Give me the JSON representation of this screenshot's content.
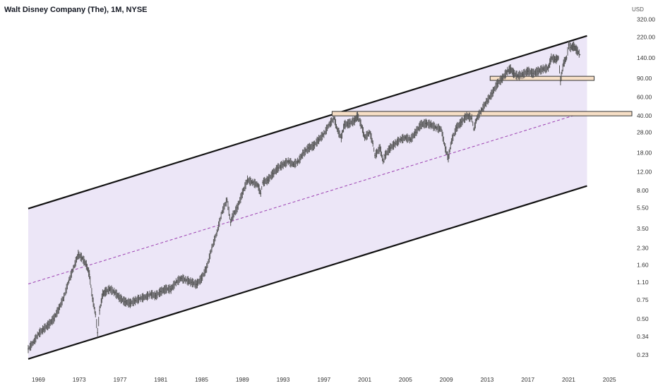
{
  "header": {
    "title": "Walt Disney Company (The), 1M, NYSE",
    "currency": "USD"
  },
  "colors": {
    "channel_fill": "#ece6f7",
    "channel_border": "#111111",
    "midline": "#9b3fb0",
    "price_bars": "#555555",
    "zone_fill": "#f7dfc6",
    "zone_border": "#333333"
  },
  "chart_data": {
    "type": "line",
    "y_scale": "log",
    "title": "",
    "xlabel": "",
    "ylabel": "",
    "grid": false,
    "legend": "none",
    "xlim": [
      1968.0,
      2027.2
    ],
    "ylim": [
      0.2,
      360
    ],
    "y_ticks": [
      "320.00",
      "220.00",
      "140.00",
      "90.00",
      "60.00",
      "40.00",
      "28.00",
      "18.00",
      "12.00",
      "8.00",
      "5.50",
      "3.50",
      "2.30",
      "1.60",
      "1.10",
      "0.75",
      "0.50",
      "0.34",
      "0.23"
    ],
    "x_ticks": [
      "1969",
      "1973",
      "1977",
      "1981",
      "1985",
      "1989",
      "1993",
      "1997",
      "2001",
      "2005",
      "2009",
      "2013",
      "2017",
      "2021",
      "2025"
    ],
    "series": [
      {
        "x": [
          1968.0,
          1968.5,
          1969.0,
          1969.5,
          1970.0,
          1970.5,
          1971.0,
          1971.5,
          1972.0,
          1972.5,
          1972.9,
          1973.3,
          1973.7,
          1974.0,
          1974.3,
          1974.6,
          1974.8,
          1975.0,
          1975.3,
          1975.6,
          1976.0,
          1976.5,
          1977.0,
          1977.5,
          1978.0,
          1978.5,
          1979.0,
          1979.5,
          1980.0,
          1980.5,
          1981.0,
          1981.5,
          1982.0,
          1982.5,
          1983.0,
          1983.5,
          1984.0,
          1984.5,
          1985.0,
          1985.5,
          1986.0,
          1986.5,
          1987.0,
          1987.5,
          1987.85,
          1988.0,
          1988.5,
          1989.0,
          1989.5,
          1990.0,
          1990.5,
          1990.8,
          1991.0,
          1991.5,
          1992.0,
          1992.5,
          1993.0,
          1993.5,
          1994.0,
          1994.5,
          1995.0,
          1995.5,
          1996.0,
          1996.5,
          1997.0,
          1997.5,
          1998.0,
          1998.3,
          1998.7,
          1999.0,
          1999.5,
          2000.0,
          2000.3,
          2000.7,
          2001.0,
          2001.5,
          2001.8,
          2002.0,
          2002.5,
          2002.8,
          2003.0,
          2003.5,
          2004.0,
          2004.5,
          2005.0,
          2005.5,
          2006.0,
          2006.5,
          2007.0,
          2007.5,
          2008.0,
          2008.5,
          2008.9,
          2009.2,
          2009.5,
          2010.0,
          2010.5,
          2011.0,
          2011.5,
          2011.7,
          2012.0,
          2012.5,
          2013.0,
          2013.5,
          2014.0,
          2014.5,
          2015.0,
          2015.3,
          2015.6,
          2016.0,
          2016.5,
          2017.0,
          2017.5,
          2018.0,
          2018.5,
          2019.0,
          2019.3,
          2019.7,
          2020.0,
          2020.2,
          2020.5,
          2020.8,
          2021.0,
          2021.2,
          2021.5,
          2021.8,
          2022.1
        ],
        "y": [
          0.26,
          0.3,
          0.36,
          0.4,
          0.44,
          0.5,
          0.62,
          0.8,
          1.15,
          1.55,
          2.0,
          1.85,
          1.6,
          1.3,
          0.78,
          0.55,
          0.37,
          0.6,
          0.85,
          0.9,
          0.95,
          0.88,
          0.78,
          0.72,
          0.7,
          0.74,
          0.78,
          0.8,
          0.85,
          0.82,
          0.9,
          0.95,
          0.95,
          1.1,
          1.2,
          1.15,
          1.1,
          1.05,
          1.2,
          1.5,
          2.3,
          3.2,
          5.0,
          6.5,
          4.0,
          4.5,
          5.5,
          7.5,
          10.0,
          9.5,
          9.0,
          7.5,
          9.5,
          10.0,
          11.5,
          13.0,
          14.0,
          15.0,
          14.0,
          15.0,
          18.0,
          20.0,
          21.0,
          24.0,
          27.0,
          33.0,
          38.0,
          30.0,
          25.0,
          33.0,
          34.0,
          36.0,
          40.0,
          32.0,
          25.0,
          28.0,
          22.0,
          17.0,
          20.0,
          15.0,
          17.0,
          20.0,
          22.0,
          24.0,
          25.0,
          24.0,
          28.0,
          33.0,
          34.0,
          33.0,
          31.0,
          30.0,
          20.0,
          16.0,
          23.0,
          31.0,
          35.0,
          40.0,
          38.0,
          30.0,
          38.0,
          46.0,
          55.0,
          65.0,
          80.0,
          90.0,
          105.0,
          110.0,
          100.0,
          95.0,
          98.0,
          105.0,
          100.0,
          105.0,
          110.0,
          112.0,
          140.0,
          135.0,
          140.0,
          85.0,
          125.0,
          140.0,
          185.0,
          175.0,
          180.0,
          165.0,
          150.0
        ]
      }
    ],
    "channel": {
      "upper_start": [
        1968.0,
        5.4
      ],
      "upper_end": [
        2022.8,
        225.0
      ],
      "lower_start": [
        1968.0,
        0.21
      ],
      "lower_end": [
        2022.8,
        8.8
      ],
      "midline_start": [
        1968.0,
        1.06
      ],
      "midline_end": [
        2022.8,
        44.0
      ]
    },
    "zones": [
      {
        "x0": 1997.8,
        "x1": 2027.2,
        "y_low": 40.0,
        "y_high": 44.0
      },
      {
        "x0": 2013.3,
        "x1": 2023.5,
        "y_low": 86.0,
        "y_high": 94.0
      }
    ]
  }
}
